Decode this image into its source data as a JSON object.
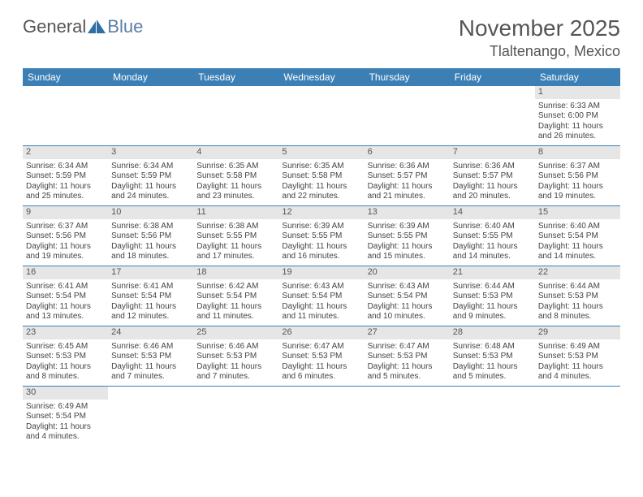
{
  "logo": {
    "general": "General",
    "blue": "Blue"
  },
  "title": "November 2025",
  "location": "Tlaltenango, Mexico",
  "colors": {
    "header_bg": "#3b7fb5",
    "header_text": "#ffffff",
    "daynum_bg": "#e6e6e6",
    "border": "#3b7fb5",
    "text": "#444444",
    "logo_blue": "#5b7fa6"
  },
  "dow": [
    "Sunday",
    "Monday",
    "Tuesday",
    "Wednesday",
    "Thursday",
    "Friday",
    "Saturday"
  ],
  "weeks": [
    [
      null,
      null,
      null,
      null,
      null,
      null,
      {
        "n": "1",
        "sr": "Sunrise: 6:33 AM",
        "ss": "Sunset: 6:00 PM",
        "dl": "Daylight: 11 hours and 26 minutes."
      }
    ],
    [
      {
        "n": "2",
        "sr": "Sunrise: 6:34 AM",
        "ss": "Sunset: 5:59 PM",
        "dl": "Daylight: 11 hours and 25 minutes."
      },
      {
        "n": "3",
        "sr": "Sunrise: 6:34 AM",
        "ss": "Sunset: 5:59 PM",
        "dl": "Daylight: 11 hours and 24 minutes."
      },
      {
        "n": "4",
        "sr": "Sunrise: 6:35 AM",
        "ss": "Sunset: 5:58 PM",
        "dl": "Daylight: 11 hours and 23 minutes."
      },
      {
        "n": "5",
        "sr": "Sunrise: 6:35 AM",
        "ss": "Sunset: 5:58 PM",
        "dl": "Daylight: 11 hours and 22 minutes."
      },
      {
        "n": "6",
        "sr": "Sunrise: 6:36 AM",
        "ss": "Sunset: 5:57 PM",
        "dl": "Daylight: 11 hours and 21 minutes."
      },
      {
        "n": "7",
        "sr": "Sunrise: 6:36 AM",
        "ss": "Sunset: 5:57 PM",
        "dl": "Daylight: 11 hours and 20 minutes."
      },
      {
        "n": "8",
        "sr": "Sunrise: 6:37 AM",
        "ss": "Sunset: 5:56 PM",
        "dl": "Daylight: 11 hours and 19 minutes."
      }
    ],
    [
      {
        "n": "9",
        "sr": "Sunrise: 6:37 AM",
        "ss": "Sunset: 5:56 PM",
        "dl": "Daylight: 11 hours and 19 minutes."
      },
      {
        "n": "10",
        "sr": "Sunrise: 6:38 AM",
        "ss": "Sunset: 5:56 PM",
        "dl": "Daylight: 11 hours and 18 minutes."
      },
      {
        "n": "11",
        "sr": "Sunrise: 6:38 AM",
        "ss": "Sunset: 5:55 PM",
        "dl": "Daylight: 11 hours and 17 minutes."
      },
      {
        "n": "12",
        "sr": "Sunrise: 6:39 AM",
        "ss": "Sunset: 5:55 PM",
        "dl": "Daylight: 11 hours and 16 minutes."
      },
      {
        "n": "13",
        "sr": "Sunrise: 6:39 AM",
        "ss": "Sunset: 5:55 PM",
        "dl": "Daylight: 11 hours and 15 minutes."
      },
      {
        "n": "14",
        "sr": "Sunrise: 6:40 AM",
        "ss": "Sunset: 5:55 PM",
        "dl": "Daylight: 11 hours and 14 minutes."
      },
      {
        "n": "15",
        "sr": "Sunrise: 6:40 AM",
        "ss": "Sunset: 5:54 PM",
        "dl": "Daylight: 11 hours and 14 minutes."
      }
    ],
    [
      {
        "n": "16",
        "sr": "Sunrise: 6:41 AM",
        "ss": "Sunset: 5:54 PM",
        "dl": "Daylight: 11 hours and 13 minutes."
      },
      {
        "n": "17",
        "sr": "Sunrise: 6:41 AM",
        "ss": "Sunset: 5:54 PM",
        "dl": "Daylight: 11 hours and 12 minutes."
      },
      {
        "n": "18",
        "sr": "Sunrise: 6:42 AM",
        "ss": "Sunset: 5:54 PM",
        "dl": "Daylight: 11 hours and 11 minutes."
      },
      {
        "n": "19",
        "sr": "Sunrise: 6:43 AM",
        "ss": "Sunset: 5:54 PM",
        "dl": "Daylight: 11 hours and 11 minutes."
      },
      {
        "n": "20",
        "sr": "Sunrise: 6:43 AM",
        "ss": "Sunset: 5:54 PM",
        "dl": "Daylight: 11 hours and 10 minutes."
      },
      {
        "n": "21",
        "sr": "Sunrise: 6:44 AM",
        "ss": "Sunset: 5:53 PM",
        "dl": "Daylight: 11 hours and 9 minutes."
      },
      {
        "n": "22",
        "sr": "Sunrise: 6:44 AM",
        "ss": "Sunset: 5:53 PM",
        "dl": "Daylight: 11 hours and 8 minutes."
      }
    ],
    [
      {
        "n": "23",
        "sr": "Sunrise: 6:45 AM",
        "ss": "Sunset: 5:53 PM",
        "dl": "Daylight: 11 hours and 8 minutes."
      },
      {
        "n": "24",
        "sr": "Sunrise: 6:46 AM",
        "ss": "Sunset: 5:53 PM",
        "dl": "Daylight: 11 hours and 7 minutes."
      },
      {
        "n": "25",
        "sr": "Sunrise: 6:46 AM",
        "ss": "Sunset: 5:53 PM",
        "dl": "Daylight: 11 hours and 7 minutes."
      },
      {
        "n": "26",
        "sr": "Sunrise: 6:47 AM",
        "ss": "Sunset: 5:53 PM",
        "dl": "Daylight: 11 hours and 6 minutes."
      },
      {
        "n": "27",
        "sr": "Sunrise: 6:47 AM",
        "ss": "Sunset: 5:53 PM",
        "dl": "Daylight: 11 hours and 5 minutes."
      },
      {
        "n": "28",
        "sr": "Sunrise: 6:48 AM",
        "ss": "Sunset: 5:53 PM",
        "dl": "Daylight: 11 hours and 5 minutes."
      },
      {
        "n": "29",
        "sr": "Sunrise: 6:49 AM",
        "ss": "Sunset: 5:53 PM",
        "dl": "Daylight: 11 hours and 4 minutes."
      }
    ],
    [
      {
        "n": "30",
        "sr": "Sunrise: 6:49 AM",
        "ss": "Sunset: 5:54 PM",
        "dl": "Daylight: 11 hours and 4 minutes."
      },
      null,
      null,
      null,
      null,
      null,
      null
    ]
  ]
}
